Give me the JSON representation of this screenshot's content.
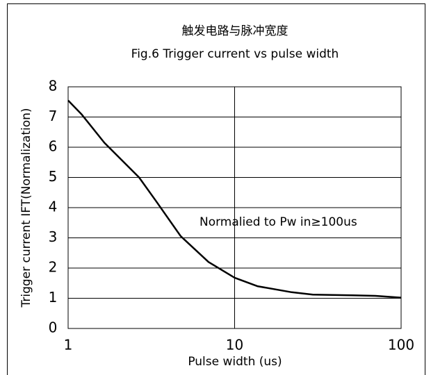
{
  "chart_data": {
    "type": "line",
    "title": "触发电路与脉冲宽度",
    "subtitle": "Fig.6 Trigger current vs pulse width",
    "x_label": "Pulse width (us)",
    "y_label": "Trigger current IFT(Normalization)",
    "annotation": "Normalied to Pw in≥100us",
    "x": [
      1,
      1.2,
      1.65,
      2.67,
      3.39,
      4.74,
      6.97,
      10,
      13.7,
      22,
      29.5,
      47.6,
      70,
      100
    ],
    "series": [
      {
        "color": "#000000",
        "values": [
          7.55,
          7.1,
          6.15,
          5.0,
          4.2,
          3.06,
          2.2,
          1.68,
          1.4,
          1.2,
          1.12,
          1.1,
          1.08,
          1.02
        ]
      }
    ],
    "xlim": [
      1,
      100
    ],
    "xticks": [
      1,
      10,
      100
    ],
    "xscale": "log",
    "ylim": [
      0,
      8
    ],
    "yticks": [
      0,
      1,
      2,
      3,
      4,
      5,
      6,
      7,
      8
    ],
    "grid": true
  }
}
